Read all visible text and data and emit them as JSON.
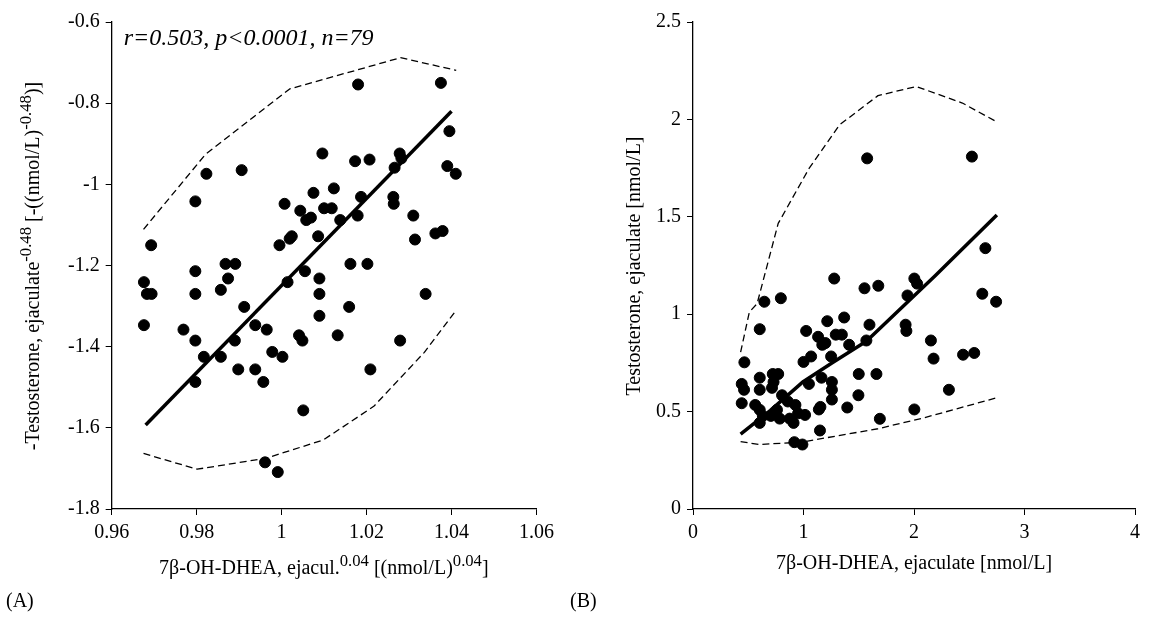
{
  "chart_data": [
    {
      "type": "scatter",
      "xlabel": "7β-OH-DHEA, ejacul.$^{0.04}$ [(nmol/L)$^{0.04}$]",
      "ylabel": "-Testosterone, ejaculate$^{-0.48}$ [-((nmol/L)$^{-0.48}$)]",
      "xlim": [
        0.96,
        1.06
      ],
      "xticks": [
        0.96,
        0.98,
        1,
        1.02,
        1.04,
        1.06
      ],
      "ylim": [
        -1.8,
        -0.6
      ],
      "yticks": [
        -1.8,
        -1.6,
        -1.4,
        -1.2,
        -1,
        -0.8,
        -0.6
      ],
      "grid": false,
      "legend": false,
      "marker": "circle",
      "annotations": [
        "r=0.503, p<0.0001, n=79",
        "(A)"
      ],
      "series": [
        {
          "color": "#000000",
          "x": [
            1.018,
            1.0375,
            1.0395,
            1.039,
            1.041,
            1.0096,
            1.0173,
            1.0207,
            1.0278,
            1.0282,
            1.0266,
            0.9823,
            0.9906,
            0.9797,
            1.0007,
            1.0075,
            1.0123,
            1.0044,
            1.01,
            1.0118,
            1.0058,
            1.0069,
            1.0138,
            1.0187,
            1.0179,
            1.0263,
            1.0264,
            1.031,
            1.0314,
            1.0362,
            1.0379,
            0.9693,
            0.9995,
            1.0019,
            1.0024,
            1.0086,
            0.9676,
            0.9797,
            0.9868,
            0.9891,
            0.9874,
            1.0055,
            1.0162,
            1.0202,
            1.0014,
            1.0089,
            0.9683,
            0.9694,
            0.9797,
            0.9857,
            1.0089,
            1.0339,
            1.0159,
            0.9912,
            1.0089,
            0.9676,
            0.9769,
            0.9797,
            0.9817,
            0.9857,
            0.989,
            0.9938,
            0.9965,
            0.9898,
            0.9938,
            0.9957,
            0.9797,
            0.9978,
            1.0002,
            1.0041,
            1.0049,
            1.0132,
            1.0279,
            1.0209,
            1.0051,
            0.9961,
            0.9991
          ],
          "values": [
            -0.754,
            -0.75,
            -0.869,
            -0.955,
            -0.974,
            -0.924,
            -0.943,
            -0.939,
            -0.924,
            -0.936,
            -0.959,
            -0.974,
            -0.965,
            -1.042,
            -1.048,
            -1.021,
            -1.01,
            -1.065,
            -1.059,
            -1.059,
            -1.088,
            -1.082,
            -1.088,
            -1.031,
            -1.077,
            -1.031,
            -1.048,
            -1.077,
            -1.136,
            -1.121,
            -1.115,
            -1.15,
            -1.15,
            -1.134,
            -1.128,
            -1.128,
            -1.241,
            -1.214,
            -1.196,
            -1.196,
            -1.232,
            -1.214,
            -1.196,
            -1.196,
            -1.241,
            -1.232,
            -1.27,
            -1.27,
            -1.27,
            -1.26,
            -1.27,
            -1.27,
            -1.302,
            -1.302,
            -1.324,
            -1.347,
            -1.358,
            -1.385,
            -1.425,
            -1.425,
            -1.385,
            -1.347,
            -1.358,
            -1.456,
            -1.456,
            -1.487,
            -1.487,
            -1.413,
            -1.425,
            -1.372,
            -1.385,
            -1.372,
            -1.385,
            -1.456,
            -1.557,
            -1.685,
            -1.709
          ]
        },
        {
          "type": "line",
          "line_style": "solid",
          "marker": "none",
          "color": "#000000",
          "x": [
            0.968,
            1.04
          ],
          "values": [
            -1.593,
            -0.82
          ]
        },
        {
          "type": "line",
          "line_style": "dashed",
          "marker": "none",
          "color": "#000000",
          "x": [
            0.9675,
            0.9821,
            1.0019,
            1.028,
            1.0411
          ],
          "values": [
            -1.111,
            -0.926,
            -0.765,
            -0.688,
            -0.719
          ]
        },
        {
          "type": "line",
          "line_style": "dashed",
          "marker": "none",
          "color": "#000000",
          "x": [
            0.9675,
            0.9801,
            0.9963,
            1.0098,
            1.0217,
            1.0336,
            1.0411
          ],
          "values": [
            -1.663,
            -1.702,
            -1.675,
            -1.63,
            -1.547,
            -1.414,
            -1.31
          ]
        }
      ]
    },
    {
      "type": "scatter",
      "xlabel": "7β-OH-DHEA, ejaculate [nmol/L]",
      "ylabel": "Testosterone, ejaculate [nmol/L]",
      "xlim": [
        0,
        4
      ],
      "xticks": [
        0,
        1,
        2,
        3,
        4
      ],
      "ylim": [
        0,
        2.5
      ],
      "yticks": [
        0,
        0.5,
        1,
        1.5,
        2,
        2.5
      ],
      "grid": false,
      "legend": false,
      "marker": "circle",
      "annotations": [
        "(B)"
      ],
      "series": [
        {
          "color": "#000000",
          "x": [
            0.441,
            0.462,
            0.441,
            0.465,
            0.604,
            0.604,
            0.604,
            0.646,
            0.795,
            0.563,
            0.604,
            0.604,
            0.632,
            0.705,
            0.715,
            0.729,
            0.722,
            0.771,
            0.76,
            0.785,
            0.806,
            0.858,
            0.875,
            0.91,
            0.927,
            0.917,
            0.99,
            0.951,
            1.014,
            1.0,
            1.024,
            1.049,
            1.069,
            1.132,
            1.153,
            1.139,
            1.149,
            1.163,
            1.17,
            1.198,
            1.215,
            1.25,
            1.257,
            1.257,
            1.257,
            1.278,
            1.292,
            1.347,
            1.368,
            1.396,
            1.413,
            1.5,
            1.497,
            1.552,
            1.569,
            1.597,
            1.677,
            1.66,
            1.691,
            1.924,
            1.931,
            1.941,
            2.003,
            2.028,
            2.003,
            2.153,
            2.177,
            2.316,
            2.444,
            2.545,
            2.618,
            2.743,
            1.576,
            2.524,
            2.646
          ],
          "values": [
            0.642,
            0.612,
            0.543,
            0.753,
            0.674,
            0.612,
            0.923,
            1.064,
            1.082,
            0.534,
            0.509,
            0.442,
            0.478,
            0.478,
            0.622,
            0.652,
            0.693,
            0.693,
            0.509,
            0.464,
            0.584,
            0.552,
            0.464,
            0.442,
            0.534,
            0.343,
            0.331,
            0.491,
            0.483,
            0.755,
            0.914,
            0.642,
            0.783,
            0.884,
            0.524,
            0.511,
            0.403,
            0.674,
            0.843,
            0.852,
            0.964,
            0.783,
            0.652,
            0.612,
            0.562,
            1.183,
            0.895,
            0.895,
            0.983,
            0.521,
            0.843,
            0.693,
            0.584,
            1.133,
            0.865,
            0.946,
            1.146,
            0.693,
            0.463,
            0.946,
            0.914,
            1.096,
            1.183,
            1.157,
            0.511,
            0.865,
            0.772,
            0.612,
            0.792,
            0.801,
            1.105,
            1.064,
            1.8,
            1.809,
            1.339
          ]
        },
        {
          "type": "line",
          "line_style": "solid",
          "marker": "none",
          "color": "#000000",
          "x": [
            0.431,
            0.701,
            1.0,
            1.257,
            1.569,
            2.194,
            2.75
          ],
          "values": [
            0.384,
            0.506,
            0.655,
            0.749,
            0.861,
            1.199,
            1.509
          ]
        },
        {
          "type": "line",
          "line_style": "dashed",
          "marker": "none",
          "color": "#000000",
          "x": [
            0.431,
            0.51,
            0.58,
            0.771,
            1.049,
            1.326,
            1.674,
            2.021,
            2.438,
            2.75
          ],
          "values": [
            0.805,
            1.011,
            1.054,
            1.466,
            1.747,
            1.972,
            2.122,
            2.169,
            2.084,
            1.987
          ]
        },
        {
          "type": "line",
          "line_style": "dashed",
          "marker": "none",
          "color": "#000000",
          "x": [
            0.431,
            0.597,
            0.979,
            1.674,
            2.09,
            2.75
          ],
          "values": [
            0.346,
            0.331,
            0.343,
            0.412,
            0.468,
            0.571
          ]
        }
      ]
    }
  ]
}
